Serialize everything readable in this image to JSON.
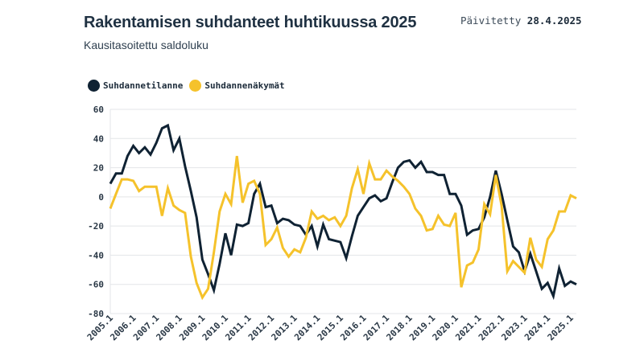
{
  "header": {
    "title": "Rakentamisen suhdanteet huhtikuussa 2025",
    "subtitle": "Kausitasoitettu saldoluku",
    "updated_label": "Päivitetty",
    "updated_date": "28.4.2025"
  },
  "legend": [
    {
      "label": "Suhdannetilanne",
      "color": "#0f2233"
    },
    {
      "label": "Suhdannenäkymät",
      "color": "#f5c22b"
    }
  ],
  "chart_data": {
    "type": "line",
    "title": "Rakentamisen suhdanteet huhtikuussa 2025",
    "subtitle": "Kausitasoitettu saldoluku",
    "xlabel": "",
    "ylabel": "",
    "ylim": [
      -80,
      60
    ],
    "yticks": [
      60,
      40,
      20,
      0,
      -20,
      -40,
      -60,
      -80
    ],
    "grid": true,
    "legend_position": "top-left",
    "x_start": "2005.1",
    "x_end": "2025.2",
    "xtick_labels": [
      "2005.1",
      "2006.1",
      "2007.1",
      "2008.1",
      "2009.1",
      "2010.1",
      "2011.1",
      "2012.1",
      "2013.1",
      "2014.1",
      "2015.1",
      "2016.1",
      "2017.1",
      "2018.1",
      "2019.1",
      "2020.1",
      "2021.1",
      "2022.1",
      "2023.1",
      "2024.1",
      "2025.1"
    ],
    "series": [
      {
        "name": "Suhdannetilanne",
        "color": "#0f2233",
        "values": [
          9,
          16,
          16,
          28,
          35,
          30,
          34,
          29,
          37,
          47,
          49,
          32,
          40,
          21,
          4,
          -14,
          -43,
          -53,
          -64,
          -46,
          -25,
          -40,
          -19,
          -20,
          -18,
          2,
          9,
          -7,
          -6,
          -18,
          -15,
          -16,
          -19,
          -20,
          -26,
          -20,
          -34,
          -19,
          -29,
          -30,
          -31,
          -42,
          -27,
          -13,
          -7,
          -1,
          1,
          -3,
          -1,
          10,
          20,
          24,
          25,
          20,
          24,
          17,
          17,
          15,
          15,
          2,
          2,
          -6,
          -26,
          -23,
          -22,
          -14,
          0,
          18,
          2,
          -16,
          -34,
          -38,
          -51,
          -39,
          -51,
          -63,
          -59,
          -68,
          -49,
          -61,
          -58,
          -60
        ]
      },
      {
        "name": "Suhdannenäkymät",
        "color": "#f5c22b",
        "values": [
          -8,
          2,
          12,
          12,
          11,
          4,
          7,
          7,
          7,
          -13,
          6,
          -6,
          -9,
          -11,
          -41,
          -59,
          -69,
          -63,
          -38,
          -10,
          2,
          -5,
          28,
          -4,
          9,
          11,
          2,
          -33,
          -29,
          -21,
          -35,
          -41,
          -36,
          -38,
          -28,
          -10,
          -15,
          -13,
          -16,
          -14,
          -20,
          -13,
          6,
          19,
          2,
          23,
          12,
          12,
          18,
          14,
          11,
          7,
          2,
          -8,
          -13,
          -23,
          -22,
          -13,
          -19,
          -20,
          -11,
          -62,
          -47,
          -45,
          -36,
          -5,
          -12,
          15,
          -6,
          -51,
          -44,
          -48,
          -52,
          -28,
          -43,
          -48,
          -29,
          -23,
          -10,
          -10,
          1,
          -1
        ]
      }
    ]
  }
}
